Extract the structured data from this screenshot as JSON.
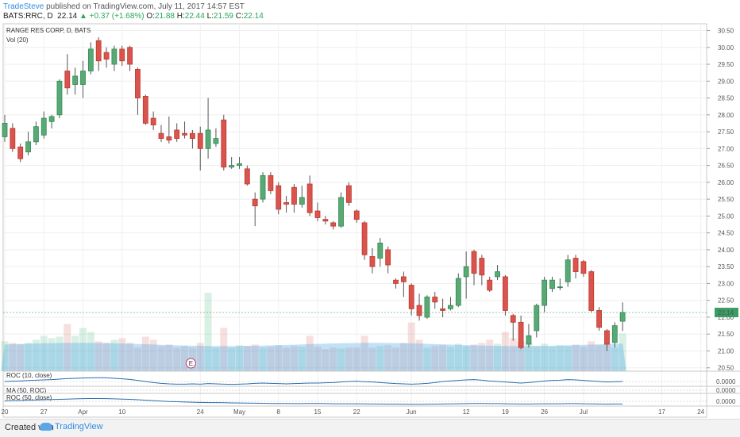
{
  "header": {
    "user": "TradeSteve",
    "published": "published on TradingView.com, July 11, 2017 14:57 EST",
    "symbol": "BATS:RRC, D",
    "price": "22.14",
    "change_arrow": "▲",
    "change": "+0.37 (+1.68%)",
    "o_label": "O:",
    "o_value": "21.88",
    "h_label": "H:",
    "h_value": "22.44",
    "l_label": "L:",
    "l_value": "21.59",
    "c_label": "C:",
    "c_value": "22.14"
  },
  "chart_data": {
    "type": "candlestick",
    "title": "RANGE RES CORP, D, BATS",
    "volume_label": "Vol (20)",
    "ylim": [
      20.4,
      30.7
    ],
    "y_ticks": [
      "30.50",
      "30.00",
      "29.50",
      "29.00",
      "28.50",
      "28.00",
      "27.50",
      "27.00",
      "26.50",
      "26.00",
      "25.50",
      "25.00",
      "24.50",
      "24.00",
      "23.50",
      "23.00",
      "22.50",
      "22.00",
      "21.50",
      "21.00",
      "20.50"
    ],
    "last_price_label": "22.14",
    "last_price": 22.14,
    "x_tick_labels": [
      "20",
      "27",
      "Apr",
      "10",
      "24",
      "May",
      "8",
      "15",
      "22",
      "Jun",
      "12",
      "19",
      "26",
      "Jul",
      "17",
      "24"
    ],
    "x_tick_index": [
      0,
      5,
      10,
      15,
      25,
      30,
      35,
      40,
      45,
      52,
      59,
      64,
      69,
      74,
      84,
      89
    ],
    "candles": [
      [
        27.35,
        27.75,
        28.0,
        27.2
      ],
      [
        27.6,
        27.0,
        27.75,
        26.9
      ],
      [
        27.05,
        26.7,
        27.15,
        26.6
      ],
      [
        26.9,
        27.2,
        27.5,
        26.8
      ],
      [
        27.2,
        27.65,
        27.8,
        27.1
      ],
      [
        27.4,
        27.9,
        28.1,
        27.3
      ],
      [
        27.8,
        27.95,
        28.0,
        27.6
      ],
      [
        28.0,
        29.0,
        29.05,
        27.9
      ],
      [
        29.3,
        28.8,
        29.8,
        28.6
      ],
      [
        28.9,
        29.15,
        29.4,
        28.6
      ],
      [
        28.9,
        29.3,
        29.6,
        28.5
      ],
      [
        29.3,
        29.95,
        30.15,
        29.2
      ],
      [
        30.2,
        29.6,
        30.3,
        29.3
      ],
      [
        29.85,
        29.65,
        30.0,
        29.4
      ],
      [
        29.5,
        29.95,
        30.05,
        29.3
      ],
      [
        29.95,
        29.6,
        30.05,
        29.45
      ],
      [
        30.0,
        29.5,
        30.05,
        29.3
      ],
      [
        29.35,
        28.5,
        29.4,
        28.0
      ],
      [
        28.55,
        27.75,
        28.6,
        27.7
      ],
      [
        27.9,
        27.7,
        28.1,
        27.55
      ],
      [
        27.45,
        27.3,
        27.7,
        27.2
      ],
      [
        27.35,
        27.25,
        27.95,
        27.15
      ],
      [
        27.55,
        27.3,
        27.75,
        27.2
      ],
      [
        27.45,
        27.4,
        27.8,
        27.3
      ],
      [
        27.45,
        27.3,
        27.55,
        27.0
      ],
      [
        27.45,
        27.0,
        27.65,
        26.35
      ],
      [
        27.0,
        27.55,
        28.5,
        26.7
      ],
      [
        27.15,
        27.3,
        27.6,
        27.05
      ],
      [
        27.85,
        26.45,
        28.0,
        26.35
      ],
      [
        26.45,
        26.5,
        26.75,
        26.4
      ],
      [
        26.5,
        26.55,
        26.75,
        26.4
      ],
      [
        26.4,
        25.95,
        26.5,
        25.9
      ],
      [
        25.5,
        25.3,
        25.7,
        24.7
      ],
      [
        25.5,
        26.2,
        26.3,
        25.4
      ],
      [
        26.2,
        25.75,
        26.3,
        25.65
      ],
      [
        25.9,
        25.2,
        26.0,
        25.05
      ],
      [
        25.4,
        25.35,
        25.6,
        25.1
      ],
      [
        25.85,
        25.35,
        25.95,
        25.1
      ],
      [
        25.35,
        25.55,
        25.9,
        25.25
      ],
      [
        25.95,
        25.1,
        26.2,
        25.0
      ],
      [
        25.15,
        24.95,
        25.4,
        24.85
      ],
      [
        24.9,
        24.85,
        25.0,
        24.75
      ],
      [
        24.8,
        24.7,
        24.85,
        24.6
      ],
      [
        24.7,
        25.55,
        25.7,
        24.65
      ],
      [
        25.9,
        25.4,
        26.0,
        25.3
      ],
      [
        25.15,
        24.9,
        25.2,
        24.8
      ],
      [
        24.8,
        23.85,
        24.85,
        23.7
      ],
      [
        23.8,
        23.5,
        24.05,
        23.3
      ],
      [
        23.75,
        24.2,
        24.35,
        23.5
      ],
      [
        24.0,
        23.55,
        24.1,
        23.3
      ],
      [
        23.1,
        23.0,
        23.15,
        22.85
      ],
      [
        23.2,
        23.05,
        23.35,
        22.6
      ],
      [
        22.95,
        22.25,
        23.0,
        22.05
      ],
      [
        22.35,
        22.05,
        22.7,
        21.9
      ],
      [
        22.0,
        22.6,
        22.65,
        21.95
      ],
      [
        22.6,
        22.45,
        22.75,
        22.25
      ],
      [
        22.25,
        22.2,
        22.55,
        22.0
      ],
      [
        22.25,
        22.35,
        22.6,
        22.2
      ],
      [
        22.35,
        23.15,
        23.3,
        22.3
      ],
      [
        23.2,
        23.5,
        23.95,
        22.55
      ],
      [
        23.95,
        23.3,
        24.0,
        22.95
      ],
      [
        23.75,
        23.25,
        23.85,
        22.95
      ],
      [
        23.1,
        22.8,
        23.2,
        22.75
      ],
      [
        23.2,
        23.35,
        23.55,
        23.1
      ],
      [
        23.2,
        22.2,
        23.25,
        22.05
      ],
      [
        22.05,
        21.85,
        22.1,
        21.3
      ],
      [
        21.85,
        21.1,
        22.05,
        21.05
      ],
      [
        21.2,
        21.45,
        21.8,
        21.1
      ],
      [
        21.6,
        22.35,
        22.4,
        21.4
      ],
      [
        22.35,
        23.1,
        23.2,
        22.15
      ],
      [
        22.85,
        23.1,
        23.2,
        22.75
      ],
      [
        22.9,
        22.9,
        23.15,
        22.8
      ],
      [
        23.05,
        23.7,
        23.85,
        22.9
      ],
      [
        23.75,
        23.35,
        23.85,
        23.15
      ],
      [
        23.65,
        23.3,
        23.7,
        23.2
      ],
      [
        23.35,
        22.2,
        23.4,
        22.15
      ],
      [
        22.2,
        21.7,
        22.3,
        21.6
      ],
      [
        21.6,
        21.2,
        21.65,
        21.0
      ],
      [
        21.25,
        21.75,
        21.85,
        21.1
      ],
      [
        21.88,
        22.14,
        22.44,
        21.59
      ]
    ],
    "volume_scale": [
      0,
      1
    ],
    "volume": [
      0.38,
      0.36,
      0.34,
      0.36,
      0.4,
      0.45,
      0.42,
      0.44,
      0.6,
      0.45,
      0.55,
      0.5,
      0.38,
      0.36,
      0.4,
      0.42,
      0.36,
      0.3,
      0.44,
      0.4,
      0.32,
      0.34,
      0.3,
      0.32,
      0.3,
      0.36,
      1.0,
      0.3,
      0.55,
      0.3,
      0.33,
      0.32,
      0.34,
      0.3,
      0.31,
      0.33,
      0.3,
      0.32,
      0.31,
      0.45,
      0.31,
      0.28,
      0.3,
      0.29,
      0.3,
      0.3,
      0.45,
      0.3,
      0.32,
      0.33,
      0.3,
      0.36,
      0.62,
      0.4,
      0.3,
      0.32,
      0.33,
      0.31,
      0.35,
      0.32,
      0.34,
      0.36,
      0.4,
      0.35,
      0.5,
      0.42,
      0.38,
      0.36,
      0.32,
      0.35,
      0.31,
      0.33,
      0.32,
      0.34,
      0.31,
      0.38,
      0.33,
      0.35,
      0.3,
      0.48
    ],
    "earnings_marker": "E",
    "earnings_index": 24,
    "indicators": [
      {
        "name": "ROC (10, close)",
        "value_label": "0.0000",
        "series": [
          0.0,
          0.05,
          0.1,
          0.18,
          0.25,
          0.3,
          0.35,
          0.45,
          0.55,
          0.6,
          0.65,
          0.7,
          0.72,
          0.7,
          0.6,
          0.5,
          0.4,
          0.2,
          0.0,
          -0.2,
          -0.35,
          -0.45,
          -0.5,
          -0.5,
          -0.45,
          -0.5,
          -0.4,
          -0.45,
          -0.5,
          -0.55,
          -0.5,
          -0.45,
          -0.35,
          -0.3,
          -0.35,
          -0.4,
          -0.45,
          -0.4,
          -0.35,
          -0.3,
          -0.3,
          -0.25,
          -0.2,
          -0.1,
          0.0,
          0.05,
          -0.05,
          -0.1,
          -0.2,
          -0.3,
          -0.4,
          -0.45,
          -0.5,
          -0.45,
          -0.35,
          -0.2,
          0.0,
          0.1,
          0.2,
          0.3,
          0.35,
          0.25,
          0.1,
          0.0,
          -0.1,
          -0.2,
          -0.3,
          -0.2,
          -0.05,
          0.1,
          0.2,
          0.25,
          0.35,
          0.3,
          0.2,
          0.1,
          0.0,
          -0.1,
          -0.05,
          0.0
        ]
      },
      {
        "name": "MA (50, ROC)",
        "value_label": "0.0000"
      },
      {
        "name": "ROC (50, close)",
        "value_label": "0.0000",
        "series": [
          0.1,
          0.15,
          0.2,
          0.25,
          0.3,
          0.35,
          0.4,
          0.45,
          0.5,
          0.55,
          0.6,
          0.62,
          0.62,
          0.6,
          0.55,
          0.5,
          0.45,
          0.35,
          0.25,
          0.15,
          0.05,
          -0.05,
          -0.1,
          -0.15,
          -0.2,
          -0.25,
          -0.28,
          -0.3,
          -0.32,
          -0.35,
          -0.38,
          -0.4,
          -0.42,
          -0.45,
          -0.48,
          -0.5,
          -0.5,
          -0.52,
          -0.52,
          -0.5,
          -0.5,
          -0.52,
          -0.55,
          -0.55,
          -0.55,
          -0.55,
          -0.58,
          -0.6,
          -0.6,
          -0.62,
          -0.62,
          -0.64,
          -0.66,
          -0.66,
          -0.64,
          -0.62,
          -0.6,
          -0.58,
          -0.55,
          -0.52,
          -0.5,
          -0.5,
          -0.52,
          -0.52,
          -0.55,
          -0.58,
          -0.6,
          -0.6,
          -0.58,
          -0.55,
          -0.55,
          -0.55,
          -0.52,
          -0.52,
          -0.55,
          -0.58,
          -0.6,
          -0.62,
          -0.6,
          -0.6
        ]
      }
    ]
  },
  "footer": {
    "created_with": "Created with",
    "brand": "TradingView"
  }
}
